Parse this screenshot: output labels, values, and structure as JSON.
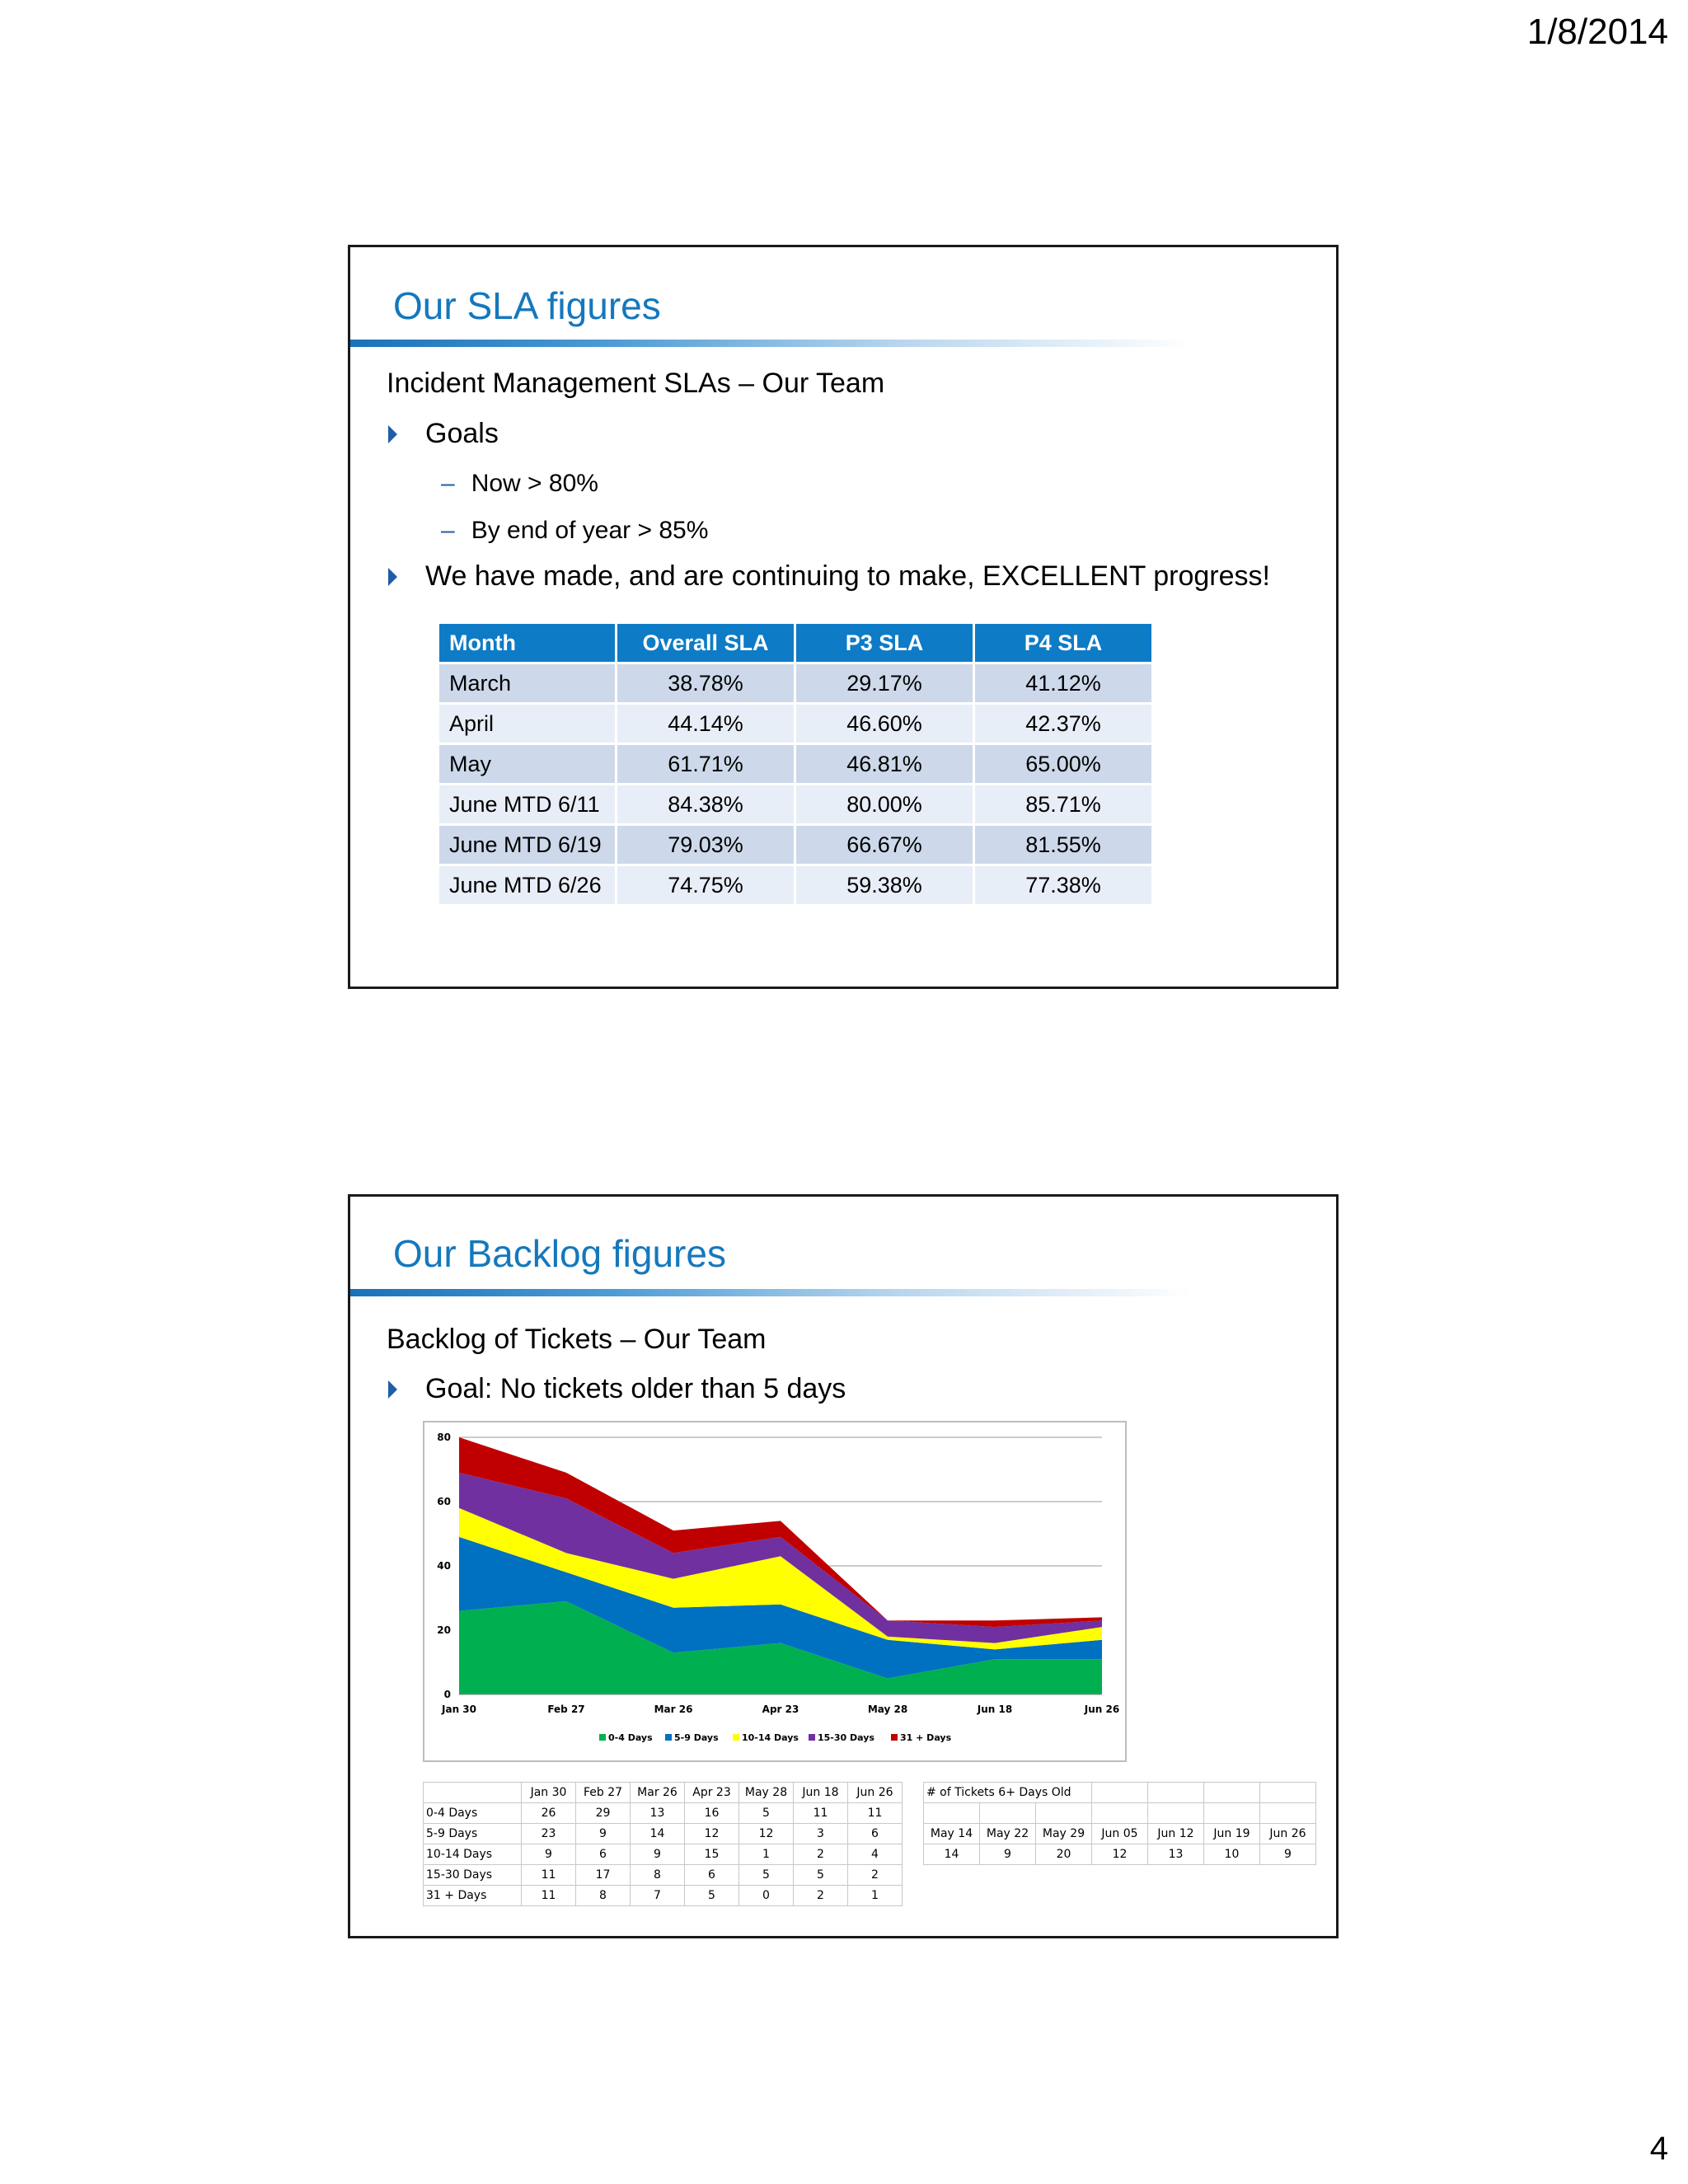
{
  "header": {
    "date": "1/8/2014"
  },
  "footer": {
    "page_number": "4"
  },
  "slide1": {
    "title": "Our SLA figures",
    "subtitle": "Incident Management SLAs – Our Team",
    "bullets": [
      {
        "text": "Goals",
        "sub": [
          "Now > 80%",
          "By end of year > 85%"
        ]
      },
      {
        "text": "We have made, and are continuing to make, EXCELLENT progress!"
      }
    ],
    "table": {
      "headers": [
        "Month",
        "Overall SLA",
        "P3 SLA",
        "P4 SLA"
      ],
      "rows": [
        [
          "March",
          "38.78%",
          "29.17%",
          "41.12%"
        ],
        [
          "April",
          "44.14%",
          "46.60%",
          "42.37%"
        ],
        [
          "May",
          "61.71%",
          "46.81%",
          "65.00%"
        ],
        [
          "June MTD 6/11",
          "84.38%",
          "80.00%",
          "85.71%"
        ],
        [
          "June MTD 6/19",
          "79.03%",
          "66.67%",
          "81.55%"
        ],
        [
          "June MTD 6/26",
          "74.75%",
          "59.38%",
          "77.38%"
        ]
      ],
      "header_color": "#0e7bc7",
      "row_colors": [
        "#cdd9ea",
        "#e8eef7"
      ]
    }
  },
  "slide2": {
    "title": "Our Backlog figures",
    "subtitle": "Backlog of Tickets – Our Team",
    "bullets": [
      {
        "text": "Goal: No tickets older than 5 days"
      }
    ],
    "backlog_table": {
      "headers": [
        "",
        "Jan 30",
        "Feb 27",
        "Mar 26",
        "Apr 23",
        "May 28",
        "Jun 18",
        "Jun 26"
      ],
      "rows": [
        [
          "0-4 Days",
          "26",
          "29",
          "13",
          "16",
          "5",
          "11",
          "11"
        ],
        [
          "5-9 Days",
          "23",
          "9",
          "14",
          "12",
          "12",
          "3",
          "6"
        ],
        [
          "10-14 Days",
          "9",
          "6",
          "9",
          "15",
          "1",
          "2",
          "4"
        ],
        [
          "15-30 Days",
          "11",
          "17",
          "8",
          "6",
          "5",
          "5",
          "2"
        ],
        [
          "31 + Days",
          "11",
          "8",
          "7",
          "5",
          "0",
          "2",
          "1"
        ]
      ]
    },
    "old_tickets_table": {
      "title": "# of Tickets 6+ Days Old",
      "headers": [
        "May 14",
        "May 22",
        "May 29",
        "Jun 05",
        "Jun 12",
        "Jun 19",
        "Jun 26"
      ],
      "values": [
        "14",
        "9",
        "20",
        "12",
        "13",
        "10",
        "9"
      ]
    }
  },
  "chart_data": {
    "type": "area",
    "stacked": true,
    "categories": [
      "Jan 30",
      "Feb 27",
      "Mar 26",
      "Apr 23",
      "May 28",
      "Jun 18",
      "Jun 26"
    ],
    "series": [
      {
        "name": "0-4 Days",
        "color": "#00b050",
        "values": [
          26,
          29,
          13,
          16,
          5,
          11,
          11
        ]
      },
      {
        "name": "5-9 Days",
        "color": "#0070c0",
        "values": [
          23,
          9,
          14,
          12,
          12,
          3,
          6
        ]
      },
      {
        "name": "10-14 Days",
        "color": "#ffff00",
        "values": [
          9,
          6,
          9,
          15,
          1,
          2,
          4
        ]
      },
      {
        "name": "15-30 Days",
        "color": "#7030a0",
        "values": [
          11,
          17,
          8,
          6,
          5,
          5,
          2
        ]
      },
      {
        "name": "31 + Days",
        "color": "#c00000",
        "values": [
          11,
          8,
          7,
          5,
          0,
          2,
          1
        ]
      }
    ],
    "yticks": [
      "0",
      "20",
      "40",
      "60",
      "80"
    ],
    "ylim": [
      0,
      80
    ],
    "grid": true,
    "legend_position": "bottom"
  }
}
